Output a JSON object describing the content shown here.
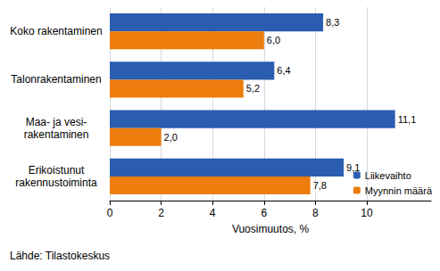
{
  "chart_data": {
    "type": "bar",
    "orientation": "horizontal",
    "categories": [
      "Koko rakentaminen",
      "Talonrakentaminen",
      "Maa- ja vesi-\nrakentaminen",
      "Erikoistunut\nrakennustoiminta"
    ],
    "series": [
      {
        "name": "Liikevaihto",
        "color": "#2a5db0",
        "values": [
          8.3,
          6.4,
          11.1,
          9.1
        ],
        "value_labels": [
          "8,3",
          "6,4",
          "11,1",
          "9,1"
        ]
      },
      {
        "name": "Myynnin määrä",
        "color": "#ed7d0c",
        "values": [
          6.0,
          5.2,
          2.0,
          7.8
        ],
        "value_labels": [
          "6,0",
          "5,2",
          "2,0",
          "7,8"
        ]
      }
    ],
    "xlabel": "Vuosimuutos, %",
    "source": "Lähde: Tilastokeskus",
    "xlim": [
      0,
      12.5
    ],
    "xticks": [
      0,
      2,
      4,
      6,
      8,
      10
    ],
    "grid": true,
    "legend": "bottom right",
    "data_labels": true
  }
}
